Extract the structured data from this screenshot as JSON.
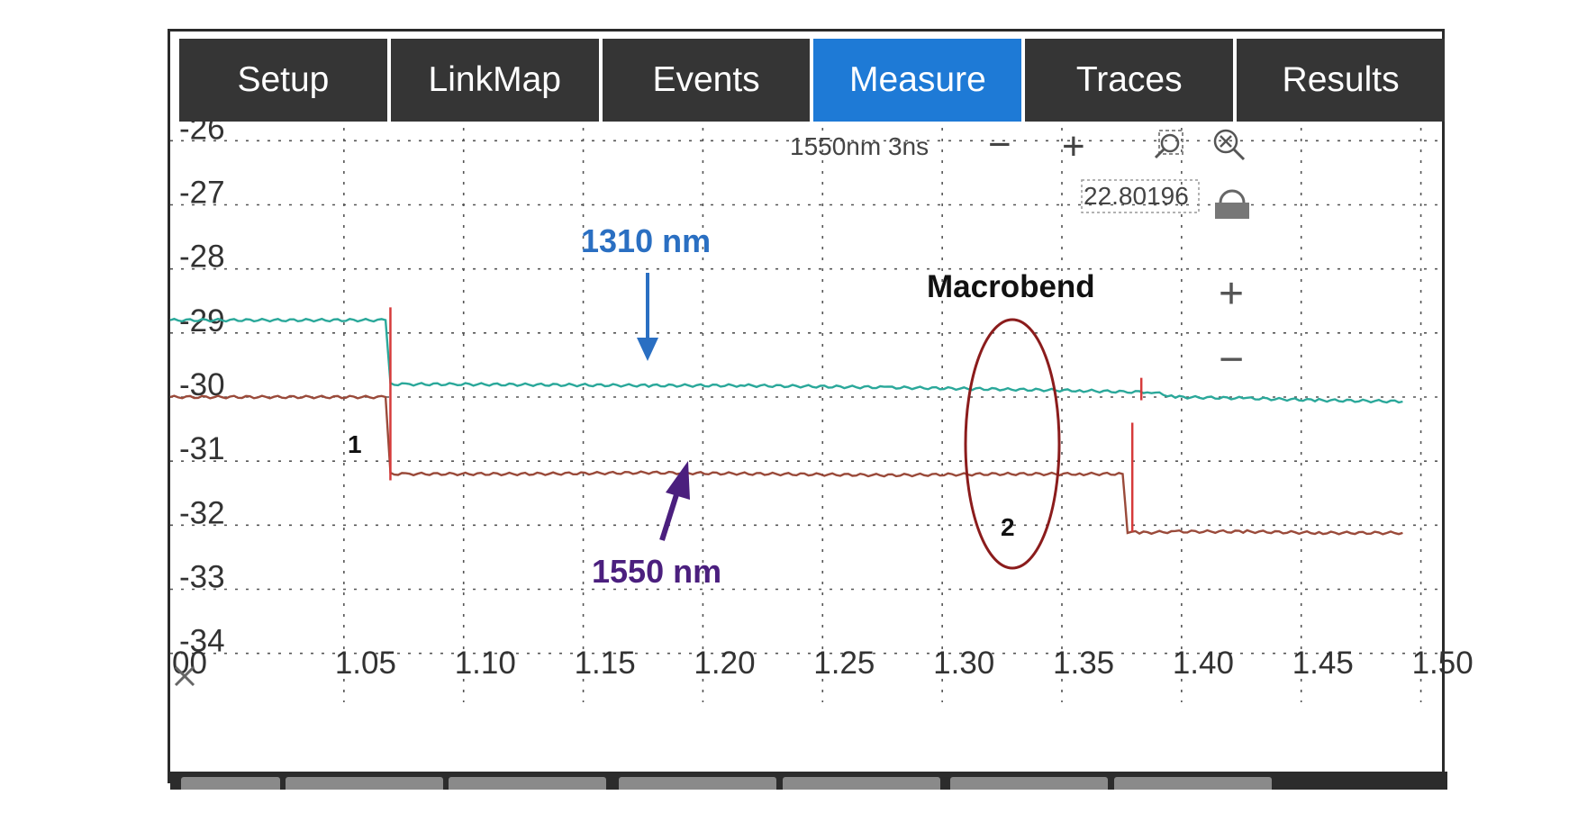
{
  "tabs": [
    {
      "label": "Setup",
      "active": false
    },
    {
      "label": "LinkMap",
      "active": false
    },
    {
      "label": "Events",
      "active": false
    },
    {
      "label": "Measure",
      "active": true
    },
    {
      "label": "Traces",
      "active": false
    },
    {
      "label": "Results",
      "active": false
    }
  ],
  "controls": {
    "trace_label": "1550nm 3ns",
    "zoom_out_symbol": "−",
    "zoom_in_symbol": "+",
    "value_readout": "22.80196",
    "vertical_zoom_in_symbol": "+",
    "vertical_zoom_out_symbol": "−",
    "icons": [
      "zoom-area-icon",
      "zoom-reset-icon",
      "lock-icon",
      "home-cross-icon"
    ]
  },
  "annotations": {
    "wl1310": "1310 nm",
    "wl1550": "1550 nm",
    "macrobend": "Macrobend",
    "event1": "1",
    "event2": "2"
  },
  "colors": {
    "trace_1310": "#2aa89a",
    "trace_1550": "#9a4a3a",
    "marker": "#d63b3b",
    "tab_active": "#1e7ad6",
    "tab_inactive": "#353535",
    "macrobend_ellipse": "#8b1c1c"
  },
  "chart_data": {
    "type": "line",
    "x_ticks": [
      "00",
      "1.05",
      "1.10",
      "1.15",
      "1.20",
      "1.25",
      "1.30",
      "1.35",
      "1.40",
      "1.45",
      "1.50"
    ],
    "y_ticks": [
      "-26",
      "-27",
      "-28",
      "-29",
      "-30",
      "-31",
      "-32",
      "-33",
      "-34"
    ],
    "xlim": [
      1.0,
      1.525
    ],
    "ylim": [
      -34.3,
      -25.7
    ],
    "grid": true,
    "series": [
      {
        "name": "1310 nm",
        "x": [
          1.0,
          1.09,
          1.092,
          1.1,
          1.12,
          1.2,
          1.24,
          1.3,
          1.35,
          1.38,
          1.4,
          1.41,
          1.42,
          1.45,
          1.48,
          1.515
        ],
        "y": [
          -28.8,
          -28.8,
          -29.8,
          -29.8,
          -29.8,
          -29.82,
          -29.82,
          -29.85,
          -29.88,
          -29.9,
          -29.92,
          -29.92,
          -30.0,
          -30.02,
          -30.05,
          -30.07
        ]
      },
      {
        "name": "1550 nm",
        "x": [
          1.0,
          1.09,
          1.092,
          1.1,
          1.15,
          1.2,
          1.25,
          1.3,
          1.35,
          1.38,
          1.398,
          1.4,
          1.405,
          1.42,
          1.45,
          1.48,
          1.515
        ],
        "y": [
          -30.0,
          -30.0,
          -31.2,
          -31.2,
          -31.2,
          -31.18,
          -31.2,
          -31.22,
          -31.2,
          -31.2,
          -31.2,
          -32.1,
          -32.12,
          -32.1,
          -32.1,
          -32.12,
          -32.12
        ]
      }
    ],
    "events": [
      {
        "label": "1",
        "x": 1.092
      },
      {
        "label": "2",
        "x": 1.402
      }
    ]
  }
}
